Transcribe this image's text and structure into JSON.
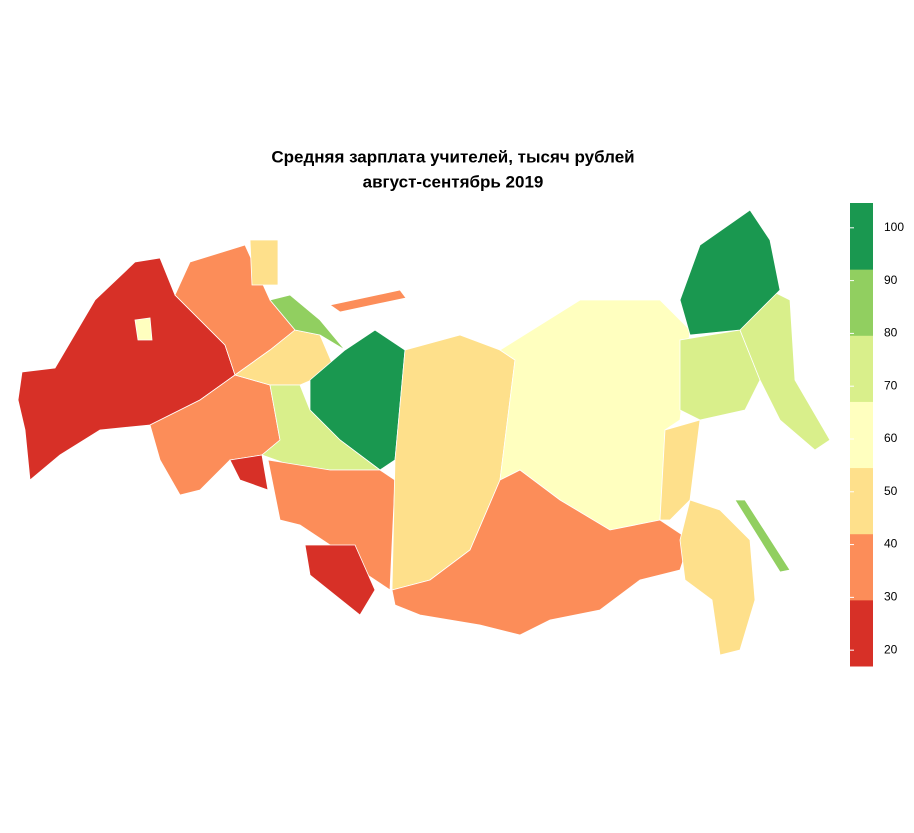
{
  "chart_data": {
    "type": "choropleth",
    "title": "Средняя зарплата учителей, тысяч рублей",
    "subtitle": "август-сентябрь 2019",
    "legend": {
      "lim": [
        17,
        104.7
      ],
      "ticks": [
        20,
        30,
        40,
        50,
        60,
        70,
        80,
        90,
        100
      ],
      "colors": [
        "#d73027",
        "#fc8d59",
        "#fee08b",
        "#ffffbf",
        "#d9ef8b",
        "#91cf60",
        "#1a9850"
      ]
    },
    "regions": [
      {
        "value": 25
      },
      {
        "value": 35
      },
      {
        "value": 35
      },
      {
        "value": 50
      },
      {
        "value": 85
      },
      {
        "value": 100
      },
      {
        "value": 70
      },
      {
        "value": 25
      },
      {
        "value": 35
      },
      {
        "value": 25
      },
      {
        "value": 50
      },
      {
        "value": 60
      },
      {
        "value": 35
      },
      {
        "value": 50
      },
      {
        "value": 50
      },
      {
        "value": 70
      },
      {
        "value": 70
      },
      {
        "value": 100
      },
      {
        "value": 85
      },
      {
        "value": 60
      },
      {
        "value": 35
      },
      {
        "value": 50
      }
    ]
  }
}
